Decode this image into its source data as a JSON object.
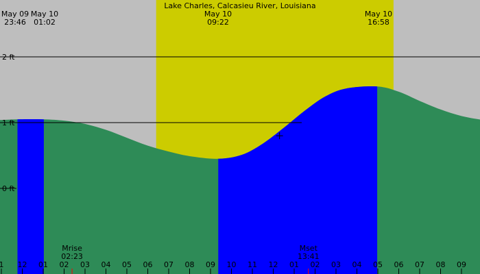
{
  "chart_data": {
    "type": "area",
    "title": "Lake Charles, Calcasieu River, Louisiana",
    "xlabel": "",
    "ylabel": "",
    "ylim": [
      -1.0,
      3.0
    ],
    "y_ticks": [
      {
        "value": 2,
        "label": "2 ft"
      },
      {
        "value": 1,
        "label": "1 ft"
      },
      {
        "value": 0,
        "label": "0 ft"
      }
    ],
    "x_range_hours": [
      -1.0,
      22.0
    ],
    "hour_ticks": [
      "1",
      "12",
      "01",
      "02",
      "03",
      "04",
      "05",
      "06",
      "07",
      "08",
      "09",
      "10",
      "11",
      "12",
      "01",
      "02",
      "03",
      "04",
      "05",
      "06",
      "07",
      "08",
      "09"
    ],
    "daylight_hours": [
      6.4,
      17.75
    ],
    "extremes": [
      {
        "date": "May 09",
        "time": "23:46",
        "type": "high",
        "height": 1.05
      },
      {
        "date": "May 10",
        "time": "01:02",
        "type": "high",
        "height": 1.05
      },
      {
        "date": "May 10",
        "time": "09:22",
        "type": "low",
        "height": 0.45
      },
      {
        "date": "May 10",
        "time": "16:58",
        "type": "high",
        "height": 1.55
      }
    ],
    "tide_curve": {
      "hours": [
        -1.0,
        -0.23,
        1.03,
        2.0,
        3.0,
        4.0,
        5.0,
        6.0,
        7.0,
        8.0,
        9.37,
        10.5,
        11.5,
        12.5,
        13.5,
        14.5,
        15.5,
        16.97,
        18.0,
        19.0,
        20.0,
        21.0,
        22.0
      ],
      "feet": [
        1.04,
        1.05,
        1.05,
        1.03,
        0.98,
        0.89,
        0.77,
        0.65,
        0.56,
        0.49,
        0.45,
        0.51,
        0.68,
        0.92,
        1.18,
        1.4,
        1.52,
        1.55,
        1.47,
        1.33,
        1.2,
        1.1,
        1.04
      ]
    },
    "now_marker": {
      "hour": 12.3,
      "feet": 0.8
    },
    "moon_events": [
      {
        "label": "Mrise",
        "time": "02:23",
        "hour": 2.38
      },
      {
        "label": "Mset",
        "time": "13:41",
        "hour": 13.68
      }
    ],
    "highlight_ranges": [
      {
        "from_hour": -0.23,
        "to_hour": 1.03
      },
      {
        "from_hour": 9.37,
        "to_hour": 16.97
      }
    ],
    "colors": {
      "background": "#bebebe",
      "daylight": "#cccc00",
      "tide_fill": "#2e8b57",
      "highlight_fill": "#0000ff",
      "moon_marker": "#ff0000",
      "line": "#000000"
    }
  }
}
